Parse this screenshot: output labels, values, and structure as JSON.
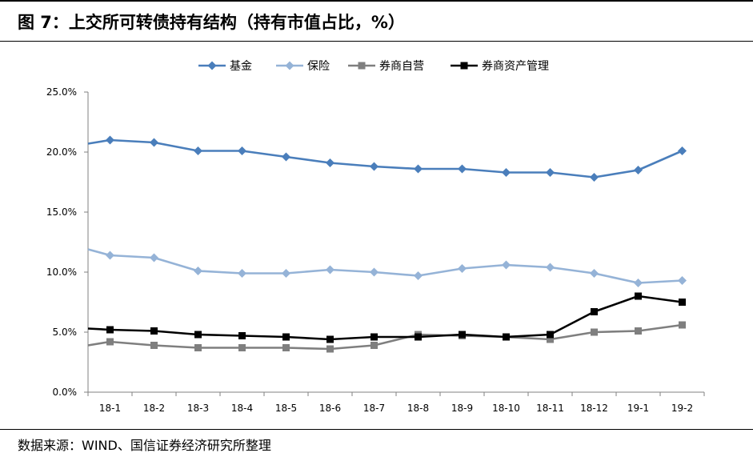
{
  "title": "图 7：上交所可转债持有结构（持有市值占比，%）",
  "source": "数据来源：WIND、国信证券经济研究所整理",
  "colors": {
    "fund": "#4a7ebb",
    "insurance": "#95b3d7",
    "broker_prop": "#7f7f7f",
    "broker_am": "#000000",
    "axis": "#808080"
  },
  "chart_data": {
    "type": "line",
    "categories": [
      "18-1",
      "18-2",
      "18-3",
      "18-4",
      "18-5",
      "18-6",
      "18-7",
      "18-8",
      "18-9",
      "18-10",
      "18-11",
      "18-12",
      "19-1",
      "19-2"
    ],
    "ylim": [
      0,
      25
    ],
    "yticks": [
      "0.0%",
      "5.0%",
      "10.0%",
      "15.0%",
      "20.0%",
      "25.0%"
    ],
    "legend_position": "top-center",
    "grid": false,
    "series": [
      {
        "name": "基金",
        "marker": "diamond",
        "color_key": "fund",
        "start": 20.7,
        "values": [
          21.0,
          20.8,
          20.1,
          20.1,
          19.6,
          19.1,
          18.8,
          18.6,
          18.6,
          18.3,
          18.3,
          17.9,
          18.5,
          20.1
        ]
      },
      {
        "name": "保险",
        "marker": "diamond",
        "color_key": "insurance",
        "start": 11.9,
        "values": [
          11.4,
          11.2,
          10.1,
          9.9,
          9.9,
          10.2,
          10.0,
          9.7,
          10.3,
          10.6,
          10.4,
          9.9,
          9.1,
          9.3
        ]
      },
      {
        "name": "券商自营",
        "marker": "square",
        "color_key": "broker_prop",
        "start": 3.9,
        "values": [
          4.2,
          3.9,
          3.7,
          3.7,
          3.7,
          3.6,
          3.9,
          4.8,
          4.7,
          4.6,
          4.4,
          5.0,
          5.1,
          5.6
        ]
      },
      {
        "name": "券商资产管理",
        "marker": "square",
        "color_key": "broker_am",
        "start": 5.3,
        "values": [
          5.2,
          5.1,
          4.8,
          4.7,
          4.6,
          4.4,
          4.6,
          4.6,
          4.8,
          4.6,
          4.8,
          6.7,
          8.0,
          7.5
        ]
      }
    ]
  }
}
